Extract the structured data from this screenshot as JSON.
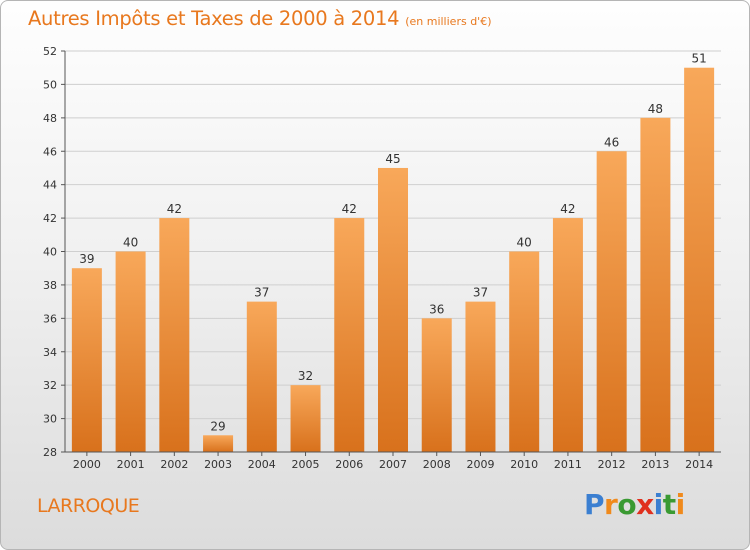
{
  "title": "Autres Impôts et Taxes de 2000 à 2014",
  "unit": "(en milliers d'€)",
  "commune": "LARROQUE",
  "brand": {
    "letters": [
      "P",
      "r",
      "o",
      "x",
      "i",
      "t",
      "i"
    ],
    "colors": [
      "#3b7fd1",
      "#f08a1c",
      "#3a9a32",
      "#e0301e",
      "#3b7fd1",
      "#3a9a32",
      "#f08a1c"
    ]
  },
  "colors": {
    "bar_light": "#f8a85a",
    "bar_dark": "#d8711c",
    "axis": "#555555",
    "grid": "#cfcfcf",
    "accent": "#e8781e"
  },
  "chart_data": {
    "type": "bar",
    "title": "Autres Impôts et Taxes de 2000 à 2014",
    "unit": "(en milliers d'€)",
    "categories": [
      "2000",
      "2001",
      "2002",
      "2003",
      "2004",
      "2005",
      "2006",
      "2007",
      "2008",
      "2009",
      "2010",
      "2011",
      "2012",
      "2013",
      "2014"
    ],
    "values": [
      39,
      40,
      42,
      29,
      37,
      32,
      42,
      45,
      36,
      37,
      40,
      42,
      46,
      48,
      51
    ],
    "ylim": [
      28,
      52
    ],
    "yticks": [
      28,
      30,
      32,
      34,
      36,
      38,
      40,
      42,
      44,
      46,
      48,
      50,
      52
    ],
    "grid": true,
    "legend": "none"
  }
}
